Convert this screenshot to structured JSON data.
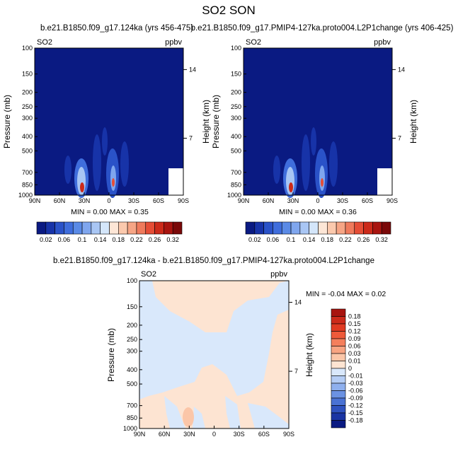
{
  "figure_title": "SO2 SON",
  "chart_data": [
    {
      "type": "heatmap",
      "title": "b.e21.B1850.f09_g17.124ka (yrs 456-475)",
      "left_label": "SO2",
      "units": "ppbv",
      "xlabel": "",
      "ylabel": "Pressure (mb)",
      "y2label": "Height (km)",
      "x_ticks": [
        "90N",
        "60N",
        "30N",
        "0",
        "30S",
        "60S",
        "90S"
      ],
      "y_ticks": [
        100,
        150,
        200,
        250,
        300,
        400,
        500,
        700,
        850,
        1000
      ],
      "y2_ticks": [
        14,
        7
      ],
      "ylim": [
        1000,
        100
      ],
      "log_scale_y": true,
      "min_label": "MIN =  0.00  MAX =  0.35",
      "min": 0.0,
      "max": 0.35,
      "colorbar": {
        "orientation": "horizontal",
        "labels": [
          "0.02",
          "0.06",
          "0.1",
          "0.14",
          "0.18",
          "0.22",
          "0.26",
          "0.32"
        ],
        "colors": [
          "#0a1a82",
          "#1733a8",
          "#2a52c8",
          "#3f6ddc",
          "#5a8ae6",
          "#7fa6ee",
          "#a9c6f4",
          "#d4e6fa",
          "#fde6d6",
          "#fbc9ad",
          "#f6a585",
          "#ef7a5c",
          "#e54d36",
          "#cc2a1a",
          "#a8140f",
          "#7a0808"
        ]
      }
    },
    {
      "type": "heatmap",
      "title": "b.e21.B1850.f09_g17.PMIP4-127ka.proto004.L2P1change (yrs 406-425)",
      "left_label": "SO2",
      "units": "ppbv",
      "xlabel": "",
      "ylabel": "Pressure (mb)",
      "y2label": "Height (km)",
      "x_ticks": [
        "90N",
        "60N",
        "30N",
        "0",
        "30S",
        "60S",
        "90S"
      ],
      "y_ticks": [
        100,
        150,
        200,
        250,
        300,
        400,
        500,
        700,
        850,
        1000
      ],
      "y2_ticks": [
        14,
        7
      ],
      "ylim": [
        1000,
        100
      ],
      "log_scale_y": true,
      "min_label": "MIN =  0.00  MAX =  0.36",
      "min": 0.0,
      "max": 0.36,
      "colorbar": {
        "orientation": "horizontal",
        "labels": [
          "0.02",
          "0.06",
          "0.1",
          "0.14",
          "0.18",
          "0.22",
          "0.26",
          "0.32"
        ],
        "colors": [
          "#0a1a82",
          "#1733a8",
          "#2a52c8",
          "#3f6ddc",
          "#5a8ae6",
          "#7fa6ee",
          "#a9c6f4",
          "#d4e6fa",
          "#fde6d6",
          "#fbc9ad",
          "#f6a585",
          "#ef7a5c",
          "#e54d36",
          "#cc2a1a",
          "#a8140f",
          "#7a0808"
        ]
      }
    },
    {
      "type": "heatmap",
      "title": "b.e21.B1850.f09_g17.124ka - b.e21.B1850.f09_g17.PMIP4-127ka.proto004.L2P1change",
      "left_label": "SO2",
      "units": "ppbv",
      "xlabel": "",
      "ylabel": "Pressure (mb)",
      "y2label": "Height (km)",
      "x_ticks": [
        "90N",
        "60N",
        "30N",
        "0",
        "30S",
        "60S",
        "90S"
      ],
      "y_ticks": [
        100,
        150,
        200,
        250,
        300,
        400,
        500,
        700,
        850,
        1000
      ],
      "y2_ticks": [
        14,
        7
      ],
      "ylim": [
        1000,
        100
      ],
      "log_scale_y": true,
      "min_label": "MIN =  -0.04  MAX =  0.02",
      "min": -0.04,
      "max": 0.02,
      "colorbar": {
        "orientation": "vertical",
        "labels": [
          "0.18",
          "0.15",
          "0.12",
          "0.09",
          "0.06",
          "0.03",
          "0.01",
          "0",
          "-0.01",
          "-0.03",
          "-0.06",
          "-0.09",
          "-0.12",
          "-0.15",
          "-0.18"
        ],
        "colors": [
          "#a8140f",
          "#cc2a1a",
          "#e03a22",
          "#ee5a3a",
          "#f47f5c",
          "#f8a482",
          "#fbc6a8",
          "#fde4d2",
          "#d9e8fb",
          "#b5cdf5",
          "#8fb0ee",
          "#6b92e3",
          "#4a72d4",
          "#2f52bf",
          "#1a34a3",
          "#0a1a82"
        ]
      }
    }
  ]
}
